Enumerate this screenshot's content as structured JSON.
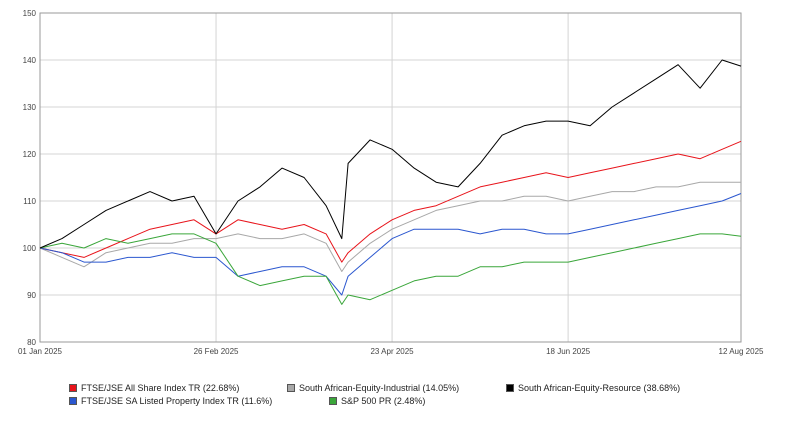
{
  "chart_data": {
    "type": "line",
    "title": "",
    "xlabel": "",
    "ylabel": "",
    "ylim": [
      80,
      150
    ],
    "y_ticks": [
      80,
      90,
      100,
      110,
      120,
      130,
      140,
      150
    ],
    "x_tick_labels": [
      "01 Jan 2025",
      "26 Feb 2025",
      "23 Apr 2025",
      "18 Jun 2025",
      "12 Aug 2025"
    ],
    "x_tick_dates": [
      "2025-01-01",
      "2025-02-26",
      "2025-04-23",
      "2025-06-18",
      "2025-08-12"
    ],
    "grid": true,
    "legend_position": "bottom",
    "series": [
      {
        "name": "FTSE/JSE All Share Index TR (22.68%)",
        "color": "#e8141b",
        "x": [
          "2025-01-01",
          "2025-01-08",
          "2025-01-15",
          "2025-01-22",
          "2025-01-29",
          "2025-02-05",
          "2025-02-12",
          "2025-02-19",
          "2025-02-26",
          "2025-03-05",
          "2025-03-12",
          "2025-03-19",
          "2025-03-26",
          "2025-04-02",
          "2025-04-07",
          "2025-04-09",
          "2025-04-16",
          "2025-04-23",
          "2025-04-30",
          "2025-05-07",
          "2025-05-14",
          "2025-05-21",
          "2025-05-28",
          "2025-06-04",
          "2025-06-11",
          "2025-06-18",
          "2025-06-25",
          "2025-07-02",
          "2025-07-09",
          "2025-07-16",
          "2025-07-23",
          "2025-07-30",
          "2025-08-06",
          "2025-08-12"
        ],
        "values": [
          100,
          99,
          98,
          100,
          102,
          104,
          105,
          106,
          103,
          106,
          105,
          104,
          105,
          103,
          97,
          99,
          103,
          106,
          108,
          109,
          111,
          113,
          114,
          115,
          116,
          115,
          116,
          117,
          118,
          119,
          120,
          119,
          121,
          122.7
        ]
      },
      {
        "name": "South African-Equity-Industrial (14.05%)",
        "color": "#a8a8a8",
        "x": [
          "2025-01-01",
          "2025-01-08",
          "2025-01-15",
          "2025-01-22",
          "2025-01-29",
          "2025-02-05",
          "2025-02-12",
          "2025-02-19",
          "2025-02-26",
          "2025-03-05",
          "2025-03-12",
          "2025-03-19",
          "2025-03-26",
          "2025-04-02",
          "2025-04-07",
          "2025-04-09",
          "2025-04-16",
          "2025-04-23",
          "2025-04-30",
          "2025-05-07",
          "2025-05-14",
          "2025-05-21",
          "2025-05-28",
          "2025-06-04",
          "2025-06-11",
          "2025-06-18",
          "2025-06-25",
          "2025-07-02",
          "2025-07-09",
          "2025-07-16",
          "2025-07-23",
          "2025-07-30",
          "2025-08-06",
          "2025-08-12"
        ],
        "values": [
          100,
          98,
          96,
          99,
          100,
          101,
          101,
          102,
          102,
          103,
          102,
          102,
          103,
          101,
          95,
          97,
          101,
          104,
          106,
          108,
          109,
          110,
          110,
          111,
          111,
          110,
          111,
          112,
          112,
          113,
          113,
          114,
          114,
          114
        ]
      },
      {
        "name": "South African-Equity-Resource (38.68%)",
        "color": "#000000",
        "x": [
          "2025-01-01",
          "2025-01-08",
          "2025-01-15",
          "2025-01-22",
          "2025-01-29",
          "2025-02-05",
          "2025-02-12",
          "2025-02-19",
          "2025-02-26",
          "2025-03-05",
          "2025-03-12",
          "2025-03-19",
          "2025-03-26",
          "2025-04-02",
          "2025-04-07",
          "2025-04-09",
          "2025-04-16",
          "2025-04-23",
          "2025-04-30",
          "2025-05-07",
          "2025-05-14",
          "2025-05-21",
          "2025-05-28",
          "2025-06-04",
          "2025-06-11",
          "2025-06-18",
          "2025-06-25",
          "2025-07-02",
          "2025-07-09",
          "2025-07-16",
          "2025-07-23",
          "2025-07-30",
          "2025-08-06",
          "2025-08-12"
        ],
        "values": [
          100,
          102,
          105,
          108,
          110,
          112,
          110,
          111,
          103,
          110,
          113,
          117,
          115,
          109,
          102,
          118,
          123,
          121,
          117,
          114,
          113,
          118,
          124,
          126,
          127,
          127,
          126,
          130,
          133,
          136,
          139,
          134,
          140,
          138.7
        ]
      },
      {
        "name": "FTSE/JSE SA Listed Property Index TR (11.6%)",
        "color": "#2b57cf",
        "x": [
          "2025-01-01",
          "2025-01-08",
          "2025-01-15",
          "2025-01-22",
          "2025-01-29",
          "2025-02-05",
          "2025-02-12",
          "2025-02-19",
          "2025-02-26",
          "2025-03-05",
          "2025-03-12",
          "2025-03-19",
          "2025-03-26",
          "2025-04-02",
          "2025-04-07",
          "2025-04-09",
          "2025-04-16",
          "2025-04-23",
          "2025-04-30",
          "2025-05-07",
          "2025-05-14",
          "2025-05-21",
          "2025-05-28",
          "2025-06-04",
          "2025-06-11",
          "2025-06-18",
          "2025-06-25",
          "2025-07-02",
          "2025-07-09",
          "2025-07-16",
          "2025-07-23",
          "2025-07-30",
          "2025-08-06",
          "2025-08-12"
        ],
        "values": [
          100,
          99,
          97,
          97,
          98,
          98,
          99,
          98,
          98,
          94,
          95,
          96,
          96,
          94,
          90,
          94,
          98,
          102,
          104,
          104,
          104,
          103,
          104,
          104,
          103,
          103,
          104,
          105,
          106,
          107,
          108,
          109,
          110,
          111.6
        ]
      },
      {
        "name": "S&P 500 PR (2.48%)",
        "color": "#3aa63a",
        "x": [
          "2025-01-01",
          "2025-01-08",
          "2025-01-15",
          "2025-01-22",
          "2025-01-29",
          "2025-02-05",
          "2025-02-12",
          "2025-02-19",
          "2025-02-26",
          "2025-03-05",
          "2025-03-12",
          "2025-03-19",
          "2025-03-26",
          "2025-04-02",
          "2025-04-07",
          "2025-04-09",
          "2025-04-16",
          "2025-04-23",
          "2025-04-30",
          "2025-05-07",
          "2025-05-14",
          "2025-05-21",
          "2025-05-28",
          "2025-06-04",
          "2025-06-11",
          "2025-06-18",
          "2025-06-25",
          "2025-07-02",
          "2025-07-09",
          "2025-07-16",
          "2025-07-23",
          "2025-07-30",
          "2025-08-06",
          "2025-08-12"
        ],
        "values": [
          100,
          101,
          100,
          102,
          101,
          102,
          103,
          103,
          101,
          94,
          92,
          93,
          94,
          94,
          88,
          90,
          89,
          91,
          93,
          94,
          94,
          96,
          96,
          97,
          97,
          97,
          98,
          99,
          100,
          101,
          102,
          103,
          103,
          102.5
        ]
      }
    ]
  }
}
